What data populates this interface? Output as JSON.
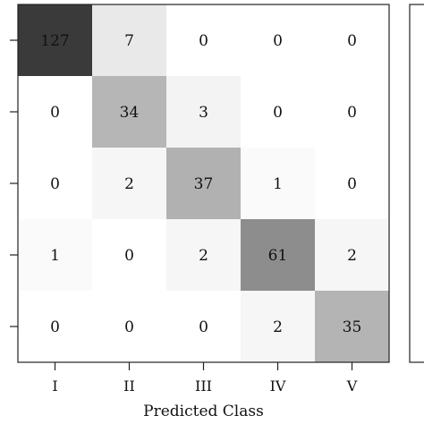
{
  "chart_data": {
    "type": "heatmap",
    "title": "",
    "xlabel": "Predicted Class",
    "ylabel": "",
    "x_categories": [
      "I",
      "II",
      "III",
      "IV",
      "V"
    ],
    "y_categories": [
      "",
      "",
      "",
      "",
      ""
    ],
    "values": [
      [
        127,
        7,
        0,
        0,
        0
      ],
      [
        0,
        34,
        3,
        0,
        0
      ],
      [
        0,
        2,
        37,
        1,
        0
      ],
      [
        1,
        0,
        2,
        61,
        2
      ],
      [
        0,
        0,
        0,
        2,
        35
      ]
    ],
    "color_scale": [
      "#ffffff",
      "#3a3a3a"
    ],
    "colorbar": "right (partially visible)",
    "grid": false
  }
}
